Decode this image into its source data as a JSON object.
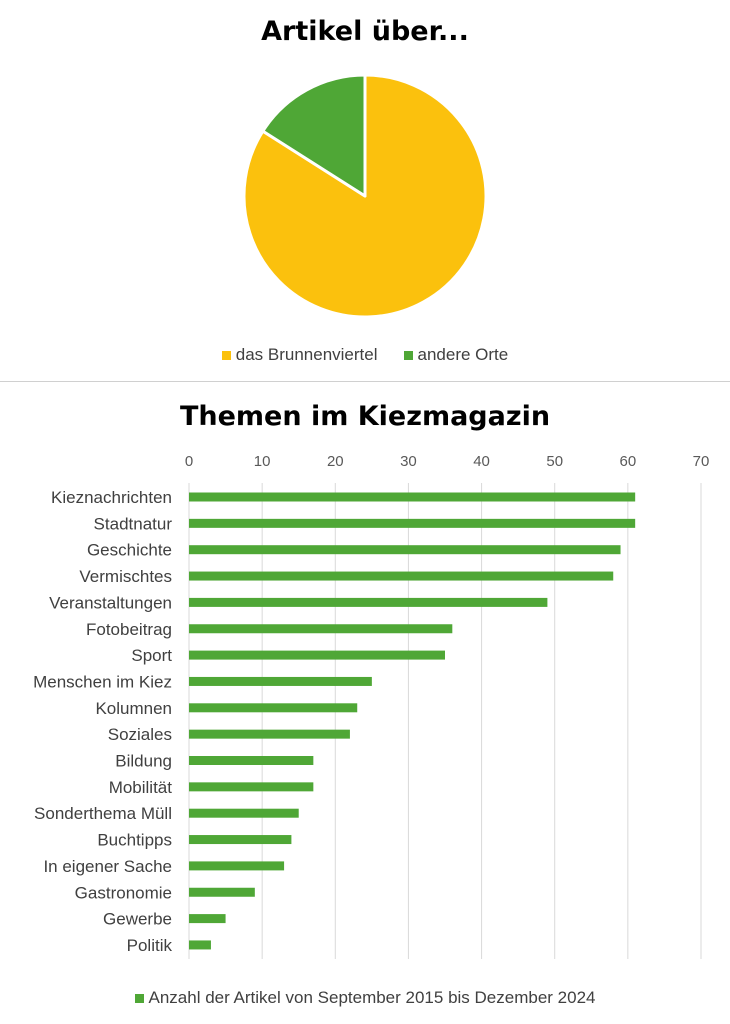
{
  "chart_data": [
    {
      "type": "pie",
      "title": "Artikel über...",
      "categories": [
        "das Brunnenviertel",
        "andere Orte"
      ],
      "values": [
        84,
        16
      ],
      "colors": [
        "#fbc10d",
        "#4fa736"
      ],
      "legend_position": "bottom",
      "start_angle_deg": 0,
      "direction": "clockwise"
    },
    {
      "type": "bar",
      "orientation": "horizontal",
      "title": "Themen im Kiezmagazin",
      "categories": [
        "Kieznachrichten",
        "Stadtnatur",
        "Geschichte",
        "Vermischtes",
        "Veranstaltungen",
        "Fotobeitrag",
        "Sport",
        "Menschen im Kiez",
        "Kolumnen",
        "Soziales",
        "Bildung",
        "Mobilität",
        "Sonderthema Müll",
        "Buchtipps",
        "In eigener Sache",
        "Gastronomie",
        "Gewerbe",
        "Politik"
      ],
      "series": [
        {
          "name": "Anzahl der Artikel von September 2015 bis Dezember 2024",
          "values": [
            61,
            61,
            59,
            58,
            49,
            36,
            35,
            25,
            23,
            22,
            17,
            17,
            15,
            14,
            13,
            9,
            5,
            3
          ],
          "color": "#4fa736"
        }
      ],
      "xlim": [
        0,
        70
      ],
      "x_ticks": [
        "0",
        "10",
        "20",
        "30",
        "40",
        "50",
        "60",
        "70"
      ],
      "x_axis_position": "top",
      "grid": true,
      "legend_position": "bottom"
    }
  ]
}
